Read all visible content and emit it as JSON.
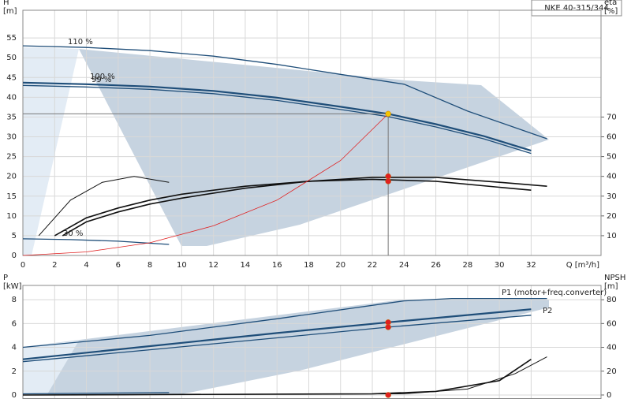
{
  "chart_data": [
    {
      "type": "line",
      "title": "NKE 40-315/344",
      "ylabel": [
        "H",
        "[m]"
      ],
      "y2label": [
        "eta",
        "[%]"
      ],
      "xlabel": "Q [m³/h]",
      "xlim": [
        0,
        36.4
      ],
      "xticks": [
        0,
        2,
        4,
        6,
        8,
        10,
        12,
        14,
        16,
        18,
        20,
        22,
        24,
        26,
        28,
        30,
        32
      ],
      "ylim": [
        0,
        62
      ],
      "yticks": [
        0,
        5,
        10,
        15,
        20,
        25,
        30,
        35,
        40,
        45,
        50,
        55
      ],
      "y2lim": [
        0,
        124
      ],
      "y2ticks": [
        10,
        20,
        30,
        40,
        50,
        60,
        70
      ],
      "grid": true,
      "series": [
        {
          "label": "110 %",
          "style": "line",
          "color": "#1f4e79",
          "width": 1.3,
          "x": [
            0,
            4,
            8,
            12,
            16,
            20,
            24,
            28,
            33
          ],
          "values": [
            53,
            52.6,
            51.8,
            50.4,
            48.3,
            45.8,
            43.3,
            36.5,
            29.5
          ]
        },
        {
          "label": "100 %",
          "style": "line",
          "color": "#1f4e79",
          "width": 2.2,
          "x": [
            0,
            4,
            8,
            12,
            16,
            20,
            23,
            26,
            29,
            32
          ],
          "values": [
            43.7,
            43.3,
            42.7,
            41.6,
            39.9,
            37.6,
            35.8,
            33.2,
            30.2,
            26.5
          ]
        },
        {
          "label": "99 %",
          "style": "line",
          "color": "#1f4e79",
          "width": 1.3,
          "x": [
            0,
            4,
            8,
            12,
            16,
            20,
            23,
            26,
            29,
            32
          ],
          "values": [
            43,
            42.6,
            42,
            40.9,
            39.2,
            36.9,
            35.1,
            32.5,
            29.5,
            25.8
          ]
        },
        {
          "label": "30 %",
          "style": "line",
          "color": "#1f4e79",
          "width": 1.3,
          "x": [
            0,
            3,
            6,
            9.2
          ],
          "values": [
            4.2,
            4,
            3.6,
            2.8
          ]
        },
        {
          "style": "line",
          "axis": "y2",
          "color": "#111",
          "width": 1.6,
          "x": [
            2,
            4,
            6,
            8,
            10,
            14,
            18,
            22,
            26,
            30,
            32
          ],
          "values": [
            10,
            19,
            24,
            28,
            31,
            35,
            37.5,
            38.5,
            37.5,
            34.5,
            33
          ]
        },
        {
          "style": "line",
          "axis": "y2",
          "color": "#111",
          "width": 1.6,
          "x": [
            2.5,
            4,
            6,
            8,
            10,
            14,
            18,
            22,
            26,
            30,
            33
          ],
          "values": [
            10,
            17,
            22,
            26,
            29,
            34,
            37.5,
            39.5,
            39.5,
            37,
            35
          ]
        },
        {
          "style": "line",
          "axis": "y2",
          "color": "#111",
          "width": 1,
          "x": [
            1,
            3,
            5,
            7,
            9.2
          ],
          "values": [
            10,
            28,
            37,
            40,
            37
          ]
        },
        {
          "style": "line",
          "color": "#e02020",
          "width": 0.8,
          "x": [
            0,
            4,
            8,
            12,
            16,
            20,
            23
          ],
          "values": [
            0,
            0.9,
            3.2,
            7.5,
            14,
            24,
            35.8
          ]
        },
        {
          "style": "points",
          "color": "#f5c400",
          "crosshair": true,
          "x": [
            23
          ],
          "values": [
            35.8
          ]
        },
        {
          "style": "points",
          "axis": "y2",
          "color": "#e02020",
          "x": [
            23,
            23
          ],
          "values": [
            40,
            37.5
          ]
        }
      ]
    },
    {
      "type": "line",
      "ylabel": [
        "P",
        "[kW]"
      ],
      "y2label": [
        "NPSH",
        "[m]"
      ],
      "xlim": [
        0,
        36.4
      ],
      "ylim": [
        -0.3,
        9.2
      ],
      "yticks": [
        0,
        2,
        4,
        6,
        8
      ],
      "y2lim": [
        -3,
        92
      ],
      "y2ticks": [
        0,
        20,
        40,
        60,
        80
      ],
      "grid": true,
      "series": [
        {
          "style": "line",
          "color": "#1f4e79",
          "width": 1.3,
          "x": [
            0,
            8,
            16,
            24,
            27,
            33
          ],
          "values": [
            4,
            5,
            6.4,
            7.9,
            8.1,
            8.1
          ]
        },
        {
          "label": "P1 (motor+freq.converter)",
          "style": "line",
          "color": "#1f4e79",
          "width": 2.2,
          "x": [
            0,
            8,
            16,
            23,
            32
          ],
          "values": [
            3,
            4.1,
            5.2,
            6.1,
            7.2
          ]
        },
        {
          "label": "P2",
          "style": "line",
          "color": "#1f4e79",
          "width": 1.3,
          "x": [
            0,
            8,
            16,
            23,
            32
          ],
          "values": [
            2.8,
            3.8,
            4.8,
            5.7,
            6.7
          ]
        },
        {
          "style": "line",
          "color": "#1f4e79",
          "width": 1.3,
          "x": [
            0,
            9.2
          ],
          "values": [
            0.1,
            0.2
          ]
        },
        {
          "style": "line",
          "axis": "y2",
          "color": "#111",
          "width": 1.6,
          "x": [
            0,
            22,
            26,
            30,
            32
          ],
          "values": [
            0,
            1,
            3,
            12,
            30
          ]
        },
        {
          "style": "line",
          "axis": "y2",
          "color": "#111",
          "width": 1,
          "x": [
            0,
            24,
            28,
            31,
            33
          ],
          "values": [
            0,
            1,
            5,
            18,
            32
          ]
        },
        {
          "style": "points",
          "color": "#e02020",
          "x": [
            23,
            23
          ],
          "values": [
            6.1,
            5.7
          ]
        },
        {
          "style": "points",
          "axis": "y2",
          "color": "#e02020",
          "x": [
            23
          ],
          "values": [
            0
          ]
        }
      ]
    }
  ]
}
